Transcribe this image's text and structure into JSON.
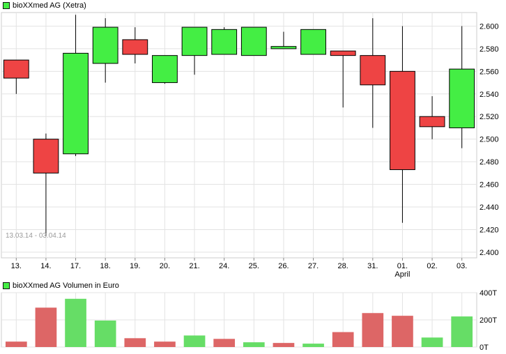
{
  "chart_data": [
    {
      "type": "candlestick",
      "title": "bioXXmed AG (Xetra)",
      "date_range_label": "13.03.14 - 03.04.14",
      "x_tick_labels": [
        "13.",
        "14.",
        "17.",
        "18.",
        "19.",
        "20.",
        "21.",
        "24.",
        "25.",
        "26.",
        "27.",
        "28.",
        "31.",
        "01.",
        "02.",
        "03."
      ],
      "x_sub_labels": {
        "01.": "April"
      },
      "y_ticks": [
        2.4,
        2.42,
        2.44,
        2.46,
        2.48,
        2.5,
        2.52,
        2.54,
        2.56,
        2.58,
        2.6
      ],
      "y_tick_labels": [
        "2.400",
        "2.420",
        "2.440",
        "2.460",
        "2.480",
        "2.500",
        "2.520",
        "2.540",
        "2.560",
        "2.580",
        "2.600"
      ],
      "ylim": [
        2.395,
        2.612
      ],
      "grid": true,
      "up_color": "#44ee44",
      "down_color": "#ee4444",
      "candles": [
        {
          "date": "13.",
          "open": 2.57,
          "close": 2.554,
          "high": 2.57,
          "low": 2.54
        },
        {
          "date": "14.",
          "open": 2.5,
          "close": 2.47,
          "high": 2.505,
          "low": 2.414
        },
        {
          "date": "17.",
          "open": 2.487,
          "close": 2.576,
          "high": 2.61,
          "low": 2.485
        },
        {
          "date": "18.",
          "open": 2.567,
          "close": 2.599,
          "high": 2.607,
          "low": 2.55
        },
        {
          "date": "19.",
          "open": 2.588,
          "close": 2.575,
          "high": 2.599,
          "low": 2.567
        },
        {
          "date": "20.",
          "open": 2.55,
          "close": 2.574,
          "high": 2.574,
          "low": 2.549
        },
        {
          "date": "21.",
          "open": 2.574,
          "close": 2.599,
          "high": 2.599,
          "low": 2.557
        },
        {
          "date": "24.",
          "open": 2.575,
          "close": 2.597,
          "high": 2.599,
          "low": 2.575
        },
        {
          "date": "25.",
          "open": 2.574,
          "close": 2.599,
          "high": 2.599,
          "low": 2.574
        },
        {
          "date": "26.",
          "open": 2.58,
          "close": 2.582,
          "high": 2.595,
          "low": 2.58
        },
        {
          "date": "27.",
          "open": 2.575,
          "close": 2.597,
          "high": 2.597,
          "low": 2.575
        },
        {
          "date": "28.",
          "open": 2.578,
          "close": 2.574,
          "high": 2.578,
          "low": 2.528
        },
        {
          "date": "31.",
          "open": 2.574,
          "close": 2.548,
          "high": 2.607,
          "low": 2.51
        },
        {
          "date": "01.",
          "open": 2.56,
          "close": 2.473,
          "high": 2.6,
          "low": 2.426
        },
        {
          "date": "02.",
          "open": 2.52,
          "close": 2.511,
          "high": 2.538,
          "low": 2.5
        },
        {
          "date": "03.",
          "open": 2.51,
          "close": 2.562,
          "high": 2.6,
          "low": 2.492
        }
      ]
    },
    {
      "type": "bar",
      "title": "bioXXmed AG Volumen in Euro",
      "categories": [
        "13.",
        "14.",
        "17.",
        "18.",
        "19.",
        "20.",
        "21.",
        "24.",
        "25.",
        "26.",
        "27.",
        "28.",
        "31.",
        "01.",
        "02.",
        "03."
      ],
      "values": [
        40000,
        290000,
        355000,
        195000,
        65000,
        40000,
        85000,
        60000,
        35000,
        30000,
        25000,
        110000,
        250000,
        230000,
        70000,
        225000
      ],
      "directions": [
        "down",
        "down",
        "up",
        "up",
        "down",
        "down",
        "up",
        "down",
        "up",
        "down",
        "up",
        "down",
        "down",
        "down",
        "up",
        "up"
      ],
      "y_ticks": [
        0,
        200000,
        400000
      ],
      "y_tick_labels": [
        "0T",
        "200T",
        "400T"
      ],
      "ylim": [
        0,
        400000
      ],
      "grid": true,
      "up_color": "#66dd66",
      "down_color": "#dd6666"
    }
  ]
}
